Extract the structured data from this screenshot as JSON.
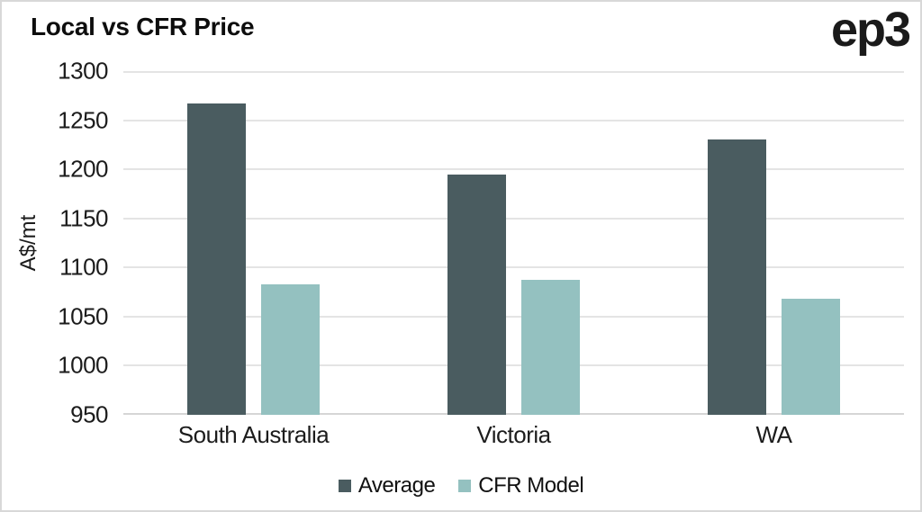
{
  "branding": {
    "logo_text": "ep3"
  },
  "chart_data": {
    "type": "bar",
    "title": "Local vs CFR Price",
    "ylabel": "A$/mt",
    "xlabel": "",
    "categories": [
      "South Australia",
      "Victoria",
      "WA"
    ],
    "series": [
      {
        "name": "Average",
        "color": "#4a5c60",
        "values": [
          1267,
          1195,
          1230
        ]
      },
      {
        "name": "CFR Model",
        "color": "#94c1c0",
        "values": [
          1083,
          1087,
          1068
        ]
      }
    ],
    "ylim": [
      950,
      1300
    ],
    "yticks": [
      950,
      1000,
      1050,
      1100,
      1150,
      1200,
      1250,
      1300
    ],
    "grid": true,
    "legend_position": "bottom"
  },
  "colors": {
    "grid": "#e4e4e4",
    "baseline": "#d6d6d6",
    "border": "#d8d8d8",
    "title_text": "#0d0d0d",
    "axis_text": "#1c1c1c",
    "background": "#ffffff"
  }
}
